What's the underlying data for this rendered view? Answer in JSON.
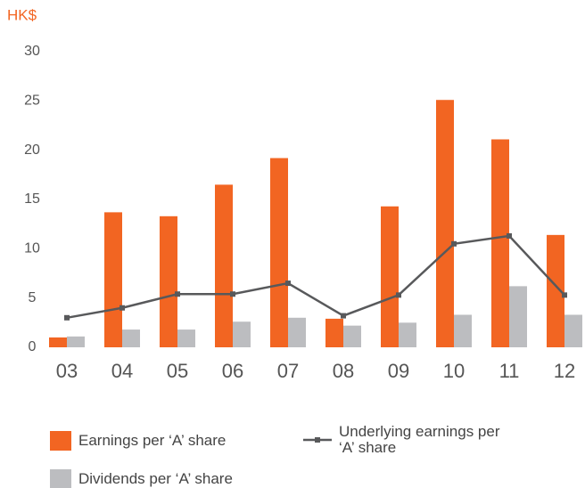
{
  "chart_data": {
    "type": "bar",
    "y_label": "HK$",
    "categories": [
      "03",
      "04",
      "05",
      "06",
      "07",
      "08",
      "09",
      "10",
      "11",
      "12"
    ],
    "series": [
      {
        "name": "Earnings per ‘A’ share",
        "color": "#f26522",
        "values": [
          1.0,
          13.7,
          13.3,
          16.5,
          19.2,
          2.9,
          14.3,
          25.1,
          21.1,
          11.4
        ]
      },
      {
        "name": "Dividends per ‘A’ share",
        "color": "#bcbdc0",
        "values": [
          1.1,
          1.8,
          1.8,
          2.6,
          3.0,
          2.2,
          2.5,
          3.3,
          6.2,
          3.3
        ]
      },
      {
        "name": "Underlying earnings per ‘A’ share",
        "type": "line",
        "color": "#58595b",
        "values": [
          3.0,
          4.0,
          5.4,
          5.4,
          6.5,
          3.2,
          5.3,
          10.5,
          11.3,
          5.3
        ]
      }
    ],
    "ylim": [
      0,
      30
    ],
    "yticks": [
      0,
      5,
      10,
      15,
      20,
      25,
      30
    ],
    "grid": false
  }
}
